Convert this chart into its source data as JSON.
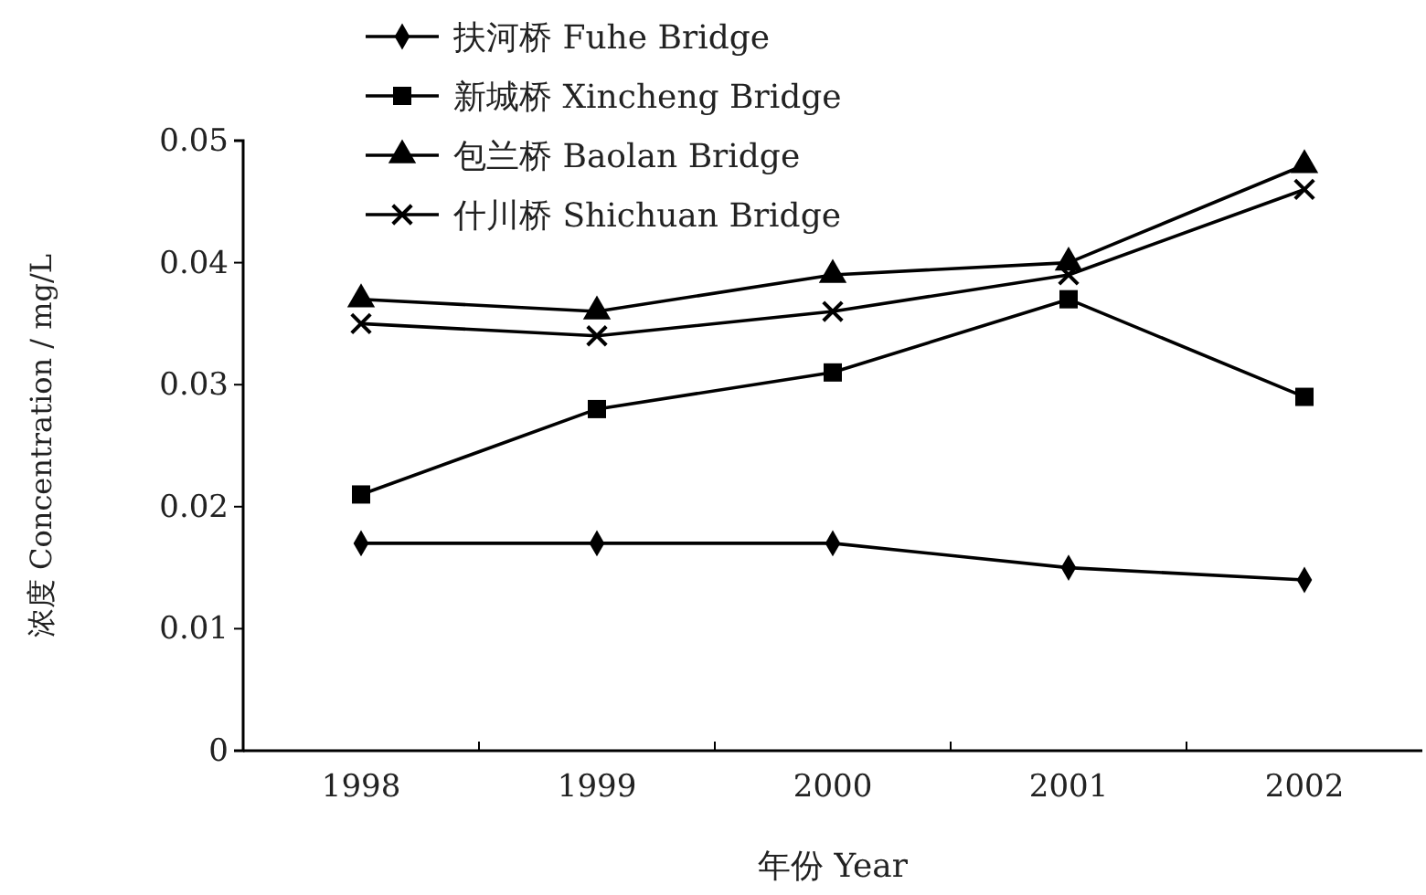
{
  "chart_data": {
    "type": "line",
    "xlabel": "年份 Year",
    "ylabel": "浓度 Concentration / mg/L",
    "categories": [
      "1998",
      "1999",
      "2000",
      "2001",
      "2002"
    ],
    "series": [
      {
        "name": "扶河桥 Fuhe Bridge",
        "color": "#000000",
        "marker": "diamond",
        "values": [
          0.017,
          0.017,
          0.017,
          0.015,
          0.014
        ]
      },
      {
        "name": "新城桥 Xincheng Bridge",
        "color": "#000000",
        "marker": "square",
        "values": [
          0.021,
          0.028,
          0.031,
          0.037,
          0.029
        ]
      },
      {
        "name": "包兰桥 Baolan Bridge",
        "color": "#000000",
        "marker": "triangle",
        "values": [
          0.037,
          0.036,
          0.039,
          0.04,
          0.048
        ]
      },
      {
        "name": "什川桥 Shichuan Bridge",
        "color": "#000000",
        "marker": "cross",
        "values": [
          0.035,
          0.034,
          0.036,
          0.039,
          0.046
        ]
      }
    ],
    "ylim": [
      0,
      0.05
    ],
    "yticks": [
      0,
      0.01,
      0.02,
      0.03,
      0.04,
      0.05
    ],
    "legend": "top left",
    "line_style": "solid",
    "grid": false
  }
}
